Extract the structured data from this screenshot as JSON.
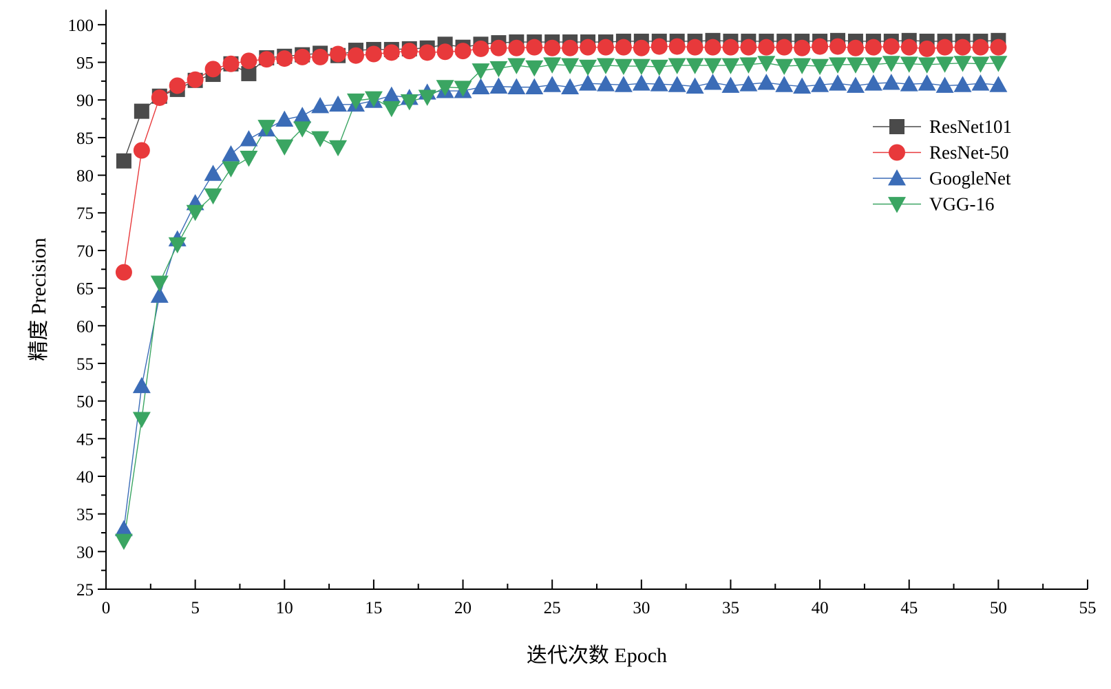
{
  "chart_data": {
    "type": "line",
    "xlabel": "迭代次数 Epoch",
    "ylabel": "精度 Precision",
    "xlim": [
      0,
      55
    ],
    "ylim": [
      25,
      102
    ],
    "xticks": [
      0,
      5,
      10,
      15,
      20,
      25,
      30,
      35,
      40,
      45,
      50,
      55
    ],
    "yticks": [
      25,
      30,
      35,
      40,
      45,
      50,
      55,
      60,
      65,
      70,
      75,
      80,
      85,
      90,
      95,
      100
    ],
    "grid": false,
    "legend_position": "top-right",
    "x": [
      1,
      2,
      3,
      4,
      5,
      6,
      7,
      8,
      9,
      10,
      11,
      12,
      13,
      14,
      15,
      16,
      17,
      18,
      19,
      20,
      21,
      22,
      23,
      24,
      25,
      26,
      27,
      28,
      29,
      30,
      31,
      32,
      33,
      34,
      35,
      36,
      37,
      38,
      39,
      40,
      41,
      42,
      43,
      44,
      45,
      46,
      47,
      48,
      49,
      50
    ],
    "series": [
      {
        "name": "ResNet101",
        "marker": "square",
        "color": "#4a4a4a",
        "values": [
          81.9,
          88.5,
          90.5,
          91.4,
          92.6,
          93.4,
          94.8,
          93.5,
          95.6,
          95.8,
          96.0,
          96.2,
          95.9,
          96.6,
          96.7,
          96.7,
          96.8,
          96.9,
          97.4,
          97.0,
          97.4,
          97.6,
          97.7,
          97.7,
          97.7,
          97.7,
          97.7,
          97.7,
          97.8,
          97.8,
          97.8,
          97.8,
          97.8,
          97.9,
          97.8,
          97.8,
          97.8,
          97.8,
          97.8,
          97.8,
          97.9,
          97.8,
          97.8,
          97.8,
          97.9,
          97.8,
          97.8,
          97.8,
          97.8,
          97.9
        ]
      },
      {
        "name": "ResNet-50",
        "marker": "circle",
        "color": "#e8393b",
        "values": [
          67.1,
          83.3,
          90.3,
          91.9,
          92.7,
          94.1,
          94.8,
          95.2,
          95.4,
          95.5,
          95.7,
          95.7,
          96.1,
          95.9,
          96.1,
          96.3,
          96.5,
          96.3,
          96.4,
          96.5,
          96.8,
          96.9,
          96.9,
          97.0,
          96.9,
          96.9,
          97.0,
          97.0,
          97.0,
          96.9,
          97.1,
          97.1,
          97.0,
          97.0,
          97.0,
          97.0,
          97.0,
          97.0,
          96.9,
          97.1,
          97.1,
          96.9,
          97.0,
          97.1,
          97.0,
          96.8,
          97.0,
          97.0,
          97.0,
          97.0
        ]
      },
      {
        "name": "GoogleNet",
        "marker": "triangle-up",
        "color": "#3b6cb7",
        "values": [
          33.0,
          52.0,
          64.0,
          71.5,
          76.3,
          80.2,
          82.8,
          84.8,
          86.1,
          87.4,
          87.9,
          89.2,
          89.4,
          89.4,
          89.9,
          90.6,
          90.3,
          91.0,
          91.2,
          91.2,
          91.7,
          91.8,
          91.7,
          91.7,
          92.0,
          91.7,
          92.2,
          92.1,
          92.0,
          92.2,
          92.1,
          92.0,
          91.8,
          92.3,
          91.9,
          92.1,
          92.3,
          92.0,
          91.8,
          92.0,
          92.2,
          91.9,
          92.2,
          92.3,
          92.1,
          92.2,
          91.9,
          92.0,
          92.2,
          92.0
        ]
      },
      {
        "name": "VGG-16",
        "marker": "triangle-down",
        "color": "#3aa562",
        "values": [
          31.4,
          47.6,
          65.7,
          70.8,
          75.1,
          77.3,
          80.9,
          82.3,
          86.4,
          83.8,
          86.2,
          84.9,
          83.7,
          89.9,
          90.2,
          88.9,
          89.8,
          90.4,
          91.7,
          91.6,
          93.9,
          94.2,
          94.6,
          94.3,
          94.7,
          94.6,
          94.4,
          94.6,
          94.5,
          94.5,
          94.4,
          94.6,
          94.6,
          94.6,
          94.6,
          94.7,
          94.9,
          94.5,
          94.6,
          94.5,
          94.7,
          94.7,
          94.7,
          94.9,
          94.8,
          94.7,
          94.8,
          94.9,
          94.8,
          94.9
        ]
      }
    ]
  }
}
